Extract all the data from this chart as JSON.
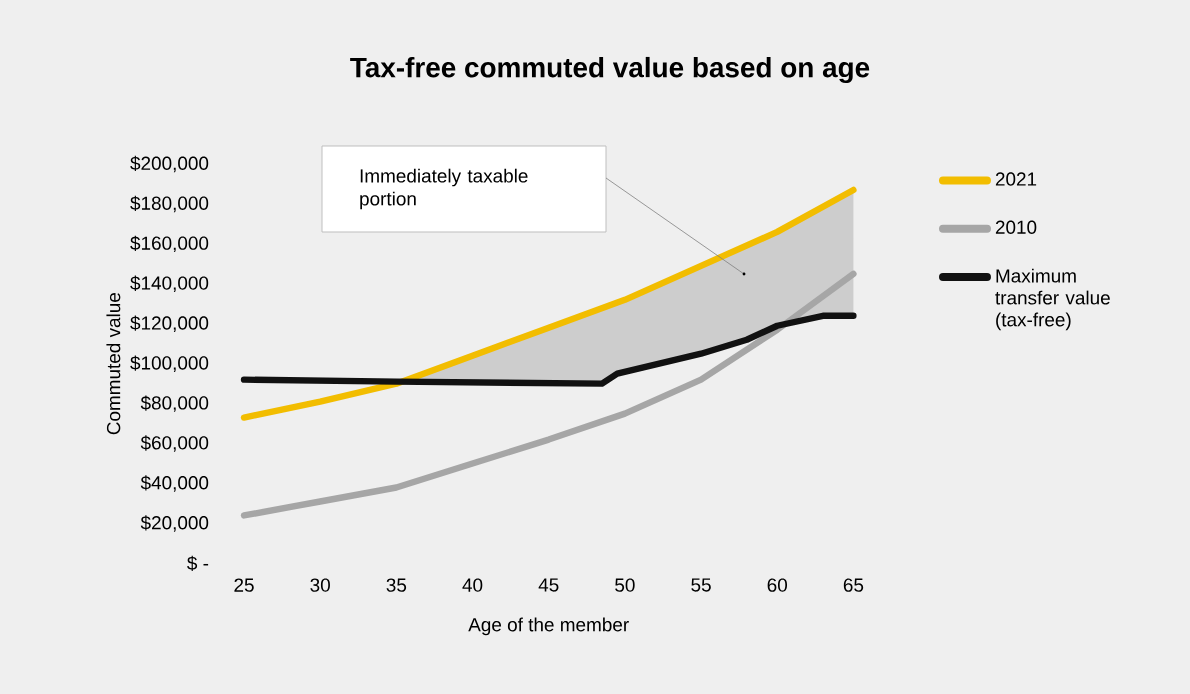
{
  "chart_data": {
    "type": "line",
    "title": "Tax-free commuted value based on age",
    "xlabel": "Age of the member",
    "ylabel": "Commuted value",
    "series": [
      {
        "name": "2021",
        "color": "#f2bd00",
        "x": [
          25,
          30,
          35,
          40,
          45,
          50,
          55,
          60,
          65
        ],
        "values": [
          73000,
          81000,
          90000,
          104000,
          118000,
          132000,
          149000,
          166000,
          187000
        ]
      },
      {
        "name": "2010",
        "color": "#a6a6a6",
        "x": [
          25,
          30,
          35,
          40,
          45,
          50,
          55,
          60,
          65
        ],
        "values": [
          24000,
          31000,
          38000,
          50000,
          62000,
          75000,
          92000,
          117000,
          145000
        ]
      },
      {
        "name": "Maximum transfer value (tax-free)",
        "color": "#111111",
        "x": [
          25,
          35,
          48.5,
          49.5,
          55,
          58,
          60,
          63,
          65
        ],
        "values": [
          92000,
          91000,
          90000,
          95000,
          105000,
          112000,
          119000,
          124000,
          124000
        ]
      }
    ],
    "annotations": [
      "Immediately taxable portion"
    ],
    "xlim": [
      25,
      65
    ],
    "ylim": [
      0,
      200000
    ],
    "xticks": [
      25,
      30,
      35,
      40,
      45,
      50,
      55,
      60,
      65
    ],
    "yticks": [
      {
        "value": 0,
        "label": "$ -"
      },
      {
        "value": 20000,
        "label": "$20,000"
      },
      {
        "value": 40000,
        "label": "$40,000"
      },
      {
        "value": 60000,
        "label": "$60,000"
      },
      {
        "value": 80000,
        "label": "$80,000"
      },
      {
        "value": 100000,
        "label": "$100,000"
      },
      {
        "value": 120000,
        "label": "$120,000"
      },
      {
        "value": 140000,
        "label": "$140,000"
      },
      {
        "value": 160000,
        "label": "$160,000"
      },
      {
        "value": 180000,
        "label": "$180,000"
      },
      {
        "value": 200000,
        "label": "$200,000"
      }
    ],
    "legend": "right",
    "marker": "none",
    "line_style": "solid"
  }
}
